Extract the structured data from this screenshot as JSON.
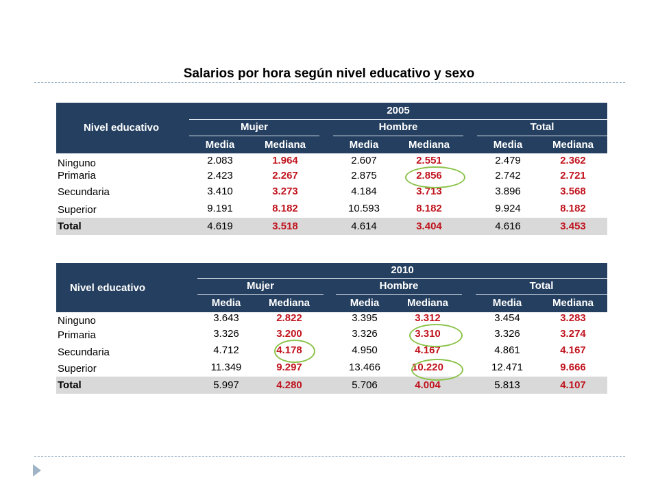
{
  "title": "Salarios por hora según nivel educativo y sexo",
  "tables": [
    {
      "year": "2005",
      "row_header": "Nivel educativo",
      "groups": [
        "Mujer",
        "Hombre",
        "Total"
      ],
      "subheaders": [
        "Media",
        "Mediana",
        "Media",
        "Mediana",
        "Media",
        "Mediana"
      ],
      "rows": [
        {
          "label": "Ninguno",
          "values": [
            "2.083",
            "1.964",
            "2.607",
            "2.551",
            "2.479",
            "2.362"
          ]
        },
        {
          "label": "Primaria",
          "values": [
            "2.423",
            "2.267",
            "2.875",
            "2.856",
            "2.742",
            "2.721"
          ]
        },
        {
          "label": "Secundaria",
          "values": [
            "3.410",
            "3.273",
            "4.184",
            "3.713",
            "3.896",
            "3.568"
          ]
        },
        {
          "label": "Superior",
          "values": [
            "9.191",
            "8.182",
            "10.593",
            "8.182",
            "9.924",
            "8.182"
          ]
        },
        {
          "label": "Total",
          "values": [
            "4.619",
            "3.518",
            "4.614",
            "3.404",
            "4.616",
            "3.453"
          ]
        }
      ]
    },
    {
      "year": "2010",
      "row_header": "Nivel educativo",
      "groups": [
        "Mujer",
        "Hombre",
        "Total"
      ],
      "subheaders": [
        "Media",
        "Mediana",
        "Media",
        "Mediana",
        "Media",
        "Mediana"
      ],
      "rows": [
        {
          "label": "Ninguno",
          "values": [
            "3.643",
            "2.822",
            "3.395",
            "3.312",
            "3.454",
            "3.283"
          ]
        },
        {
          "label": "Primaria",
          "values": [
            "3.326",
            "3.200",
            "3.326",
            "3.310",
            "3.326",
            "3.274"
          ]
        },
        {
          "label": "Secundaria",
          "values": [
            "4.712",
            "4.178",
            "4.950",
            "4.167",
            "4.861",
            "4.167"
          ]
        },
        {
          "label": "Superior",
          "values": [
            "11.349",
            "9.297",
            "13.466",
            "10.220",
            "12.471",
            "9.666"
          ]
        },
        {
          "label": "Total",
          "values": [
            "5.997",
            "4.280",
            "5.706",
            "4.004",
            "5.813",
            "4.107"
          ]
        }
      ]
    }
  ],
  "colors": {
    "header_bg": "#243f5f",
    "median_red": "#c0141e",
    "total_row_bg": "#d9d9d9",
    "highlight_circle": "#8bc34a"
  }
}
